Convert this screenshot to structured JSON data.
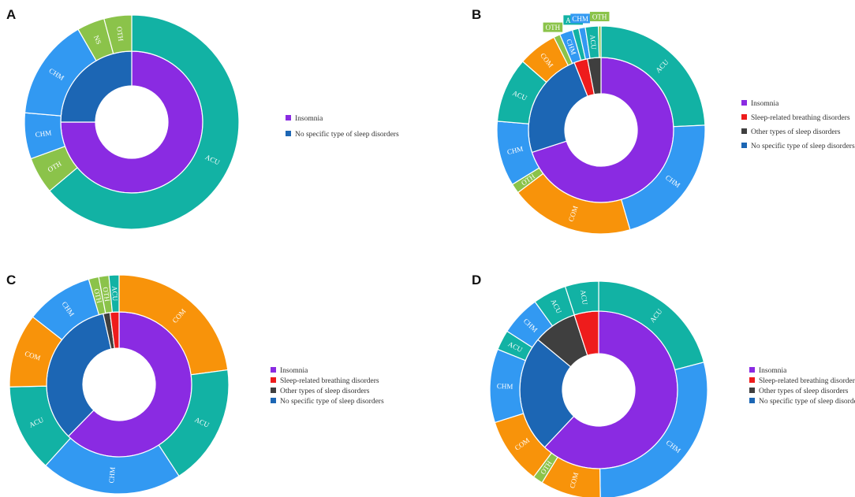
{
  "colors": {
    "insomnia": "#8A2BE2",
    "breathing": "#EE1C1C",
    "other": "#3F3F3F",
    "nospec": "#1C66B4",
    "ACU": "#12B2A4",
    "CHM": "#3299F2",
    "COM": "#F8930A",
    "OTH": "#8BC34A",
    "NS": "#8BC34A"
  },
  "chart_data": [
    {
      "type": "sunburst",
      "panel": "A",
      "title": "A",
      "legend": [
        "Insomnia",
        "No specific type of sleep disorders"
      ],
      "inner": [
        {
          "name": "Insomnia",
          "value": 6
        },
        {
          "name": "No specific type of sleep disorders",
          "value": 2
        }
      ],
      "outer": [
        {
          "label": "ACU",
          "value": 4.6
        },
        {
          "label": "OTH",
          "value": 0.4
        },
        {
          "label": "CHM",
          "value": 0.5
        },
        {
          "label": "CHM",
          "value": 1.1
        },
        {
          "label": "NS",
          "value": 0.3
        },
        {
          "label": "OTH",
          "value": 0.3
        }
      ]
    },
    {
      "type": "sunburst",
      "panel": "B",
      "title": "B",
      "legend": [
        "Insomnia",
        "Sleep-related breathing disorders",
        "Other types of sleep disorders",
        "No specific type of sleep disorders"
      ],
      "inner": [
        {
          "name": "Insomnia",
          "value": 70
        },
        {
          "name": "No specific type of sleep disorders",
          "value": 24
        },
        {
          "name": "Sleep-related breathing disorders",
          "value": 3
        },
        {
          "name": "Other types of sleep disorders",
          "value": 3
        }
      ],
      "outer": [
        {
          "label": "ACU",
          "value": 24
        },
        {
          "label": "CHM",
          "value": 21
        },
        {
          "label": "COM",
          "value": 19
        },
        {
          "label": "OTH",
          "value": 1.5
        },
        {
          "label": "CHM",
          "value": 10
        },
        {
          "label": "ACU",
          "value": 10
        },
        {
          "label": "COM",
          "value": 6
        },
        {
          "label": "OTH",
          "value": 1
        },
        {
          "label": "CHM",
          "value": 2
        },
        {
          "label": "ACU",
          "value": 1
        },
        {
          "label": "CHM",
          "value": 1
        },
        {
          "label": "ACU",
          "value": 2
        },
        {
          "label": "OTH",
          "value": 0.4
        }
      ]
    },
    {
      "type": "sunburst",
      "panel": "C",
      "title": "C",
      "legend": [
        "Insomnia",
        "Sleep-related breathing disorders",
        "Other types of sleep disorders",
        "No specific type of sleep disorders"
      ],
      "inner": [
        {
          "name": "Insomnia",
          "value": 62
        },
        {
          "name": "No specific type of sleep disorders",
          "value": 34
        },
        {
          "name": "Other types of sleep disorders",
          "value": 1.5
        },
        {
          "name": "Sleep-related breathing disorders",
          "value": 2
        }
      ],
      "outer": [
        {
          "label": "COM",
          "value": 23
        },
        {
          "label": "ACU",
          "value": 18
        },
        {
          "label": "CHM",
          "value": 21
        },
        {
          "label": "ACU",
          "value": 13
        },
        {
          "label": "COM",
          "value": 11
        },
        {
          "label": "CHM",
          "value": 10
        },
        {
          "label": "OTH",
          "value": 1.5
        },
        {
          "label": "OTH",
          "value": 1.5
        },
        {
          "label": "ACU",
          "value": 1.5
        }
      ]
    },
    {
      "type": "sunburst",
      "panel": "D",
      "title": "D",
      "legend": [
        "Insomnia",
        "Sleep-related breathing disorders",
        "Other types of sleep disorders",
        "No specific type of sleep disorders"
      ],
      "inner": [
        {
          "name": "Insomnia",
          "value": 62
        },
        {
          "name": "No specific type of sleep disorders",
          "value": 24
        },
        {
          "name": "Other types of sleep disorders",
          "value": 9
        },
        {
          "name": "Sleep-related breathing disorders",
          "value": 5
        }
      ],
      "outer": [
        {
          "label": "ACU",
          "value": 21
        },
        {
          "label": "CHM",
          "value": 29
        },
        {
          "label": "COM",
          "value": 9
        },
        {
          "label": "OTH",
          "value": 1.5
        },
        {
          "label": "COM",
          "value": 10
        },
        {
          "label": "CHM",
          "value": 11
        },
        {
          "label": "ACU",
          "value": 3
        },
        {
          "label": "CHM",
          "value": 6
        },
        {
          "label": "ACU",
          "value": 5
        },
        {
          "label": "ACU",
          "value": 5
        }
      ]
    }
  ]
}
